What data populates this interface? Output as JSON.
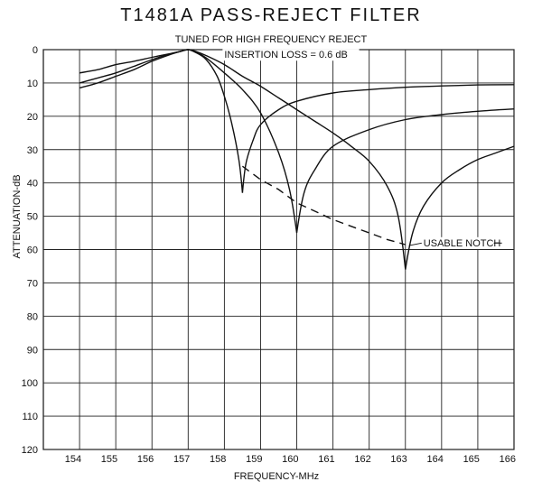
{
  "chart_data": {
    "type": "line",
    "title": "T1481A PASS-REJECT FILTER",
    "subtitle": "TUNED FOR HIGH FREQUENCY REJECT",
    "xlabel": "FREQUENCY-MHz",
    "ylabel": "ATTENUATION-dB",
    "xlim": [
      153,
      166
    ],
    "ylim": [
      0,
      120
    ],
    "y_inverted": true,
    "grid": true,
    "x_ticks": [
      "154",
      "155",
      "156",
      "157",
      "158",
      "159",
      "160",
      "161",
      "162",
      "163",
      "164",
      "165",
      "166"
    ],
    "y_ticks": [
      "0",
      "10",
      "20",
      "30",
      "40",
      "50",
      "60",
      "70",
      "80",
      "90",
      "100",
      "110",
      "120"
    ],
    "annotations": [
      {
        "text": "INSERTION LOSS = 0.6 dB",
        "x": 158,
        "y": 2.5
      },
      {
        "text": "USABLE NOTCH",
        "x": 163.5,
        "y": 59
      }
    ],
    "series": [
      {
        "name": "",
        "style": "solid",
        "notch": 158.5,
        "x": [
          154,
          154.5,
          155,
          155.5,
          156,
          156.5,
          156.8,
          157,
          157.2,
          157.5,
          157.8,
          158,
          158.2,
          158.4,
          158.5,
          158.6,
          158.8,
          159,
          159.5,
          160,
          161,
          162,
          163,
          164,
          165,
          166
        ],
        "y": [
          7,
          6,
          4.5,
          3.5,
          2.3,
          1.2,
          0.5,
          0,
          0.8,
          3,
          8,
          14,
          22,
          33,
          43,
          34,
          27,
          22.5,
          18,
          15.5,
          13,
          12,
          11.3,
          10.9,
          10.6,
          10.5
        ]
      },
      {
        "name": "",
        "style": "solid",
        "notch": 160,
        "x": [
          154,
          154.5,
          155,
          155.5,
          156,
          156.5,
          156.8,
          157,
          157.2,
          157.5,
          158,
          158.5,
          159,
          159.5,
          159.8,
          160,
          160.2,
          160.5,
          161,
          162,
          163,
          164,
          165,
          166
        ],
        "y": [
          10,
          8.5,
          7,
          5,
          3,
          1.3,
          0.5,
          0,
          0.6,
          2.5,
          7,
          12,
          19,
          31,
          42,
          55,
          43,
          36,
          29,
          24,
          21,
          19.5,
          18.5,
          17.8
        ]
      },
      {
        "name": "",
        "style": "solid",
        "notch": 163,
        "x": [
          154,
          154.5,
          155,
          155.5,
          156,
          156.5,
          156.8,
          157,
          157.2,
          157.5,
          158,
          158.5,
          159,
          159.5,
          160,
          160.5,
          161,
          161.5,
          162,
          162.5,
          162.8,
          163,
          163.2,
          163.5,
          164,
          164.5,
          165,
          165.5,
          166
        ],
        "y": [
          11.5,
          10,
          8,
          6,
          3.5,
          1.5,
          0.5,
          0,
          0.5,
          1.8,
          4.5,
          8,
          11,
          14.5,
          18,
          21.5,
          25,
          29,
          33.5,
          41,
          50,
          66,
          55,
          47,
          40,
          36,
          33,
          31,
          29
        ]
      },
      {
        "name": "USABLE NOTCH",
        "style": "dashed",
        "x": [
          158.5,
          159,
          159.5,
          160,
          160.5,
          161,
          161.5,
          162,
          162.5,
          163
        ],
        "y": [
          35,
          39,
          42,
          46,
          48.5,
          51,
          53,
          55,
          57,
          58.5
        ]
      }
    ]
  }
}
